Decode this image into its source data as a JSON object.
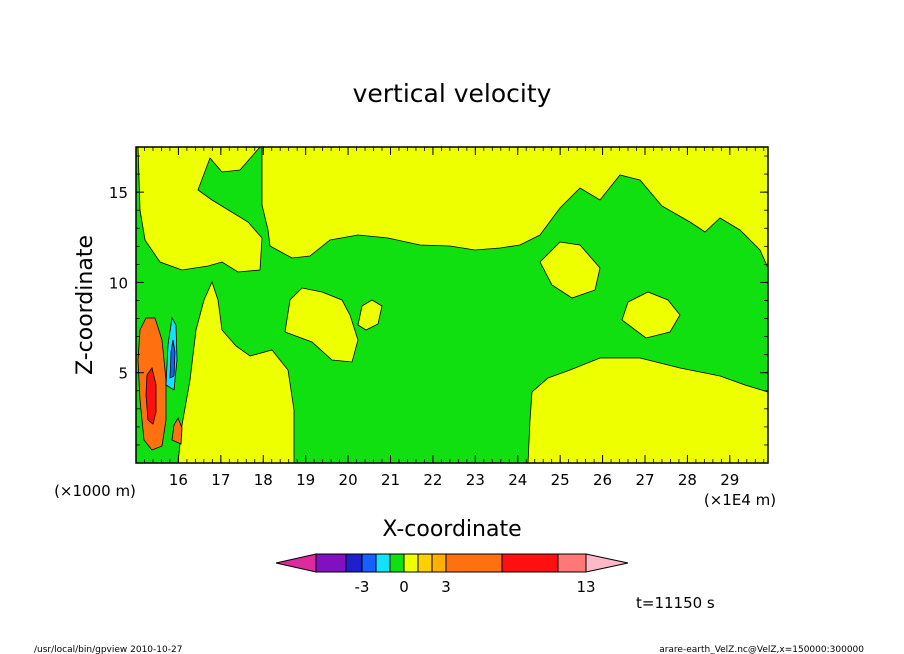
{
  "chart_data": {
    "type": "heatmap",
    "title": "vertical velocity",
    "xlabel": "X-coordinate",
    "ylabel": "Z-coordinate",
    "x_unit_label": "(×1E4 m)",
    "y_unit_label": "(×1000 m)",
    "xlim": [
      15.0,
      29.9
    ],
    "ylim": [
      0,
      17.5
    ],
    "x_ticks": [
      16,
      17,
      18,
      19,
      20,
      21,
      22,
      23,
      24,
      25,
      26,
      27,
      28,
      29
    ],
    "y_ticks": [
      5,
      10,
      15
    ],
    "colorbar": {
      "colors": [
        "#dd2a9e",
        "#8010c0",
        "#1f20cc",
        "#1560ff",
        "#16e0ff",
        "#10e010",
        "#eeff00",
        "#ffd000",
        "#ffb000",
        "#ff7010",
        "#ff1010",
        "#ff7878",
        "#ffb8c8"
      ],
      "tick_labels": [
        "-3",
        "0",
        "3",
        "13"
      ]
    },
    "time_label": "t=11150 s",
    "footer_left": "/usr/local/bin/gpview   2010-10-27",
    "footer_right": "arare-earth_VelZ.nc@VelZ,x=150000:300000"
  }
}
